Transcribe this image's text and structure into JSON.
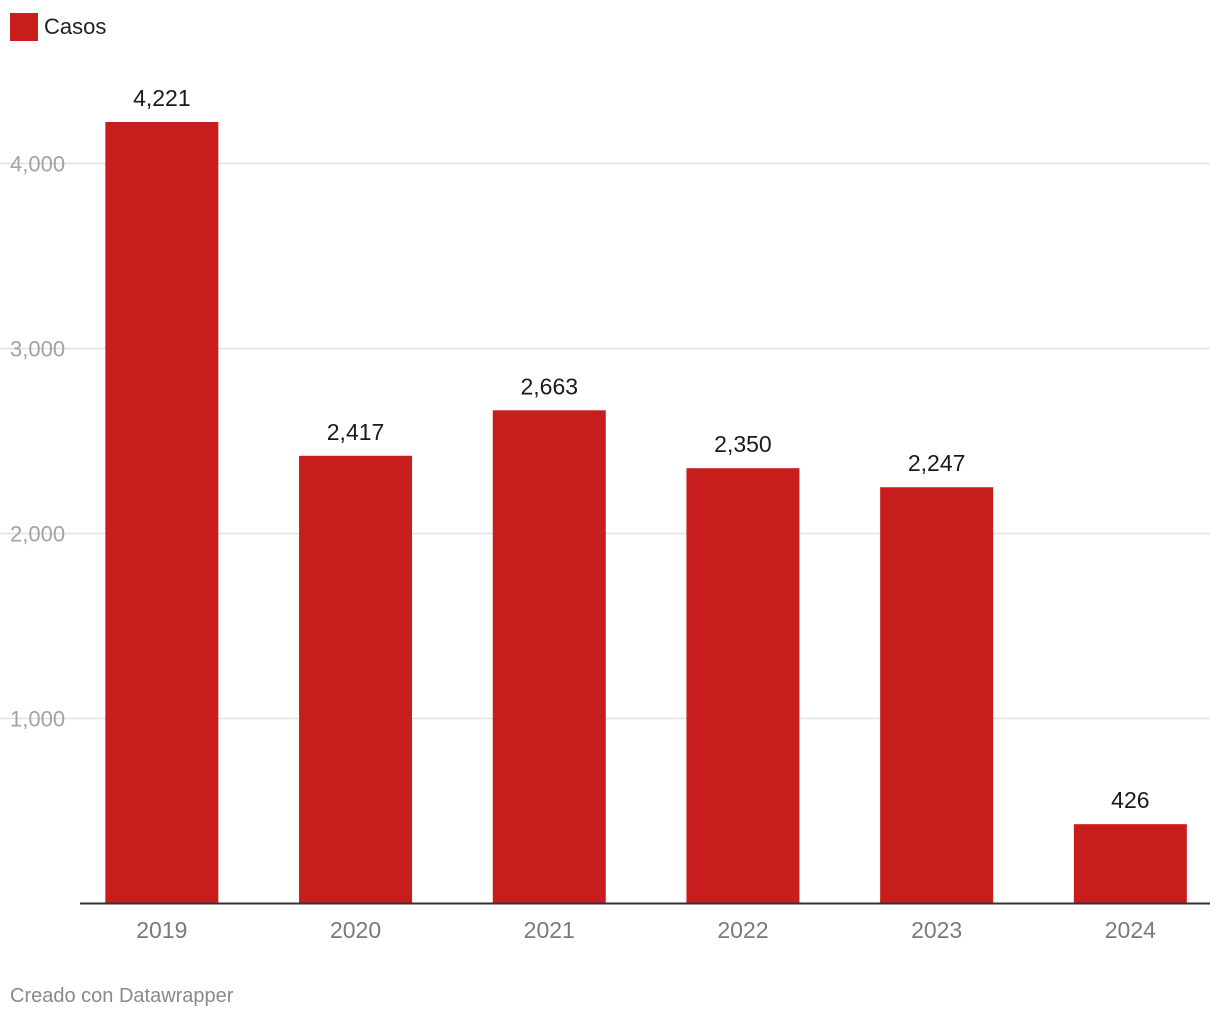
{
  "chart_data": {
    "type": "bar",
    "categories": [
      "2019",
      "2020",
      "2021",
      "2022",
      "2023",
      "2024"
    ],
    "series": [
      {
        "name": "Casos",
        "values": [
          4221,
          2417,
          2663,
          2350,
          2247,
          426
        ],
        "value_labels": [
          "4,221",
          "2,417",
          "2,663",
          "2,350",
          "2,247",
          "426"
        ],
        "color": "#c71e1d"
      }
    ],
    "yticks": [
      {
        "value": 1000,
        "label": "1,000"
      },
      {
        "value": 2000,
        "label": "2,000"
      },
      {
        "value": 3000,
        "label": "3,000"
      },
      {
        "value": 4000,
        "label": "4,000"
      }
    ],
    "ylim": [
      0,
      4221
    ],
    "grid": true,
    "legend_position": "top-left",
    "colors": {
      "bar": "#c71e1d",
      "grid": "#e1e1e1",
      "axis": "#333333",
      "tick_text": "#a3a3a3",
      "category_text": "#7a7a7a",
      "value_text": "#1a1a1a"
    }
  },
  "footer": {
    "credit": "Creado con Datawrapper"
  }
}
